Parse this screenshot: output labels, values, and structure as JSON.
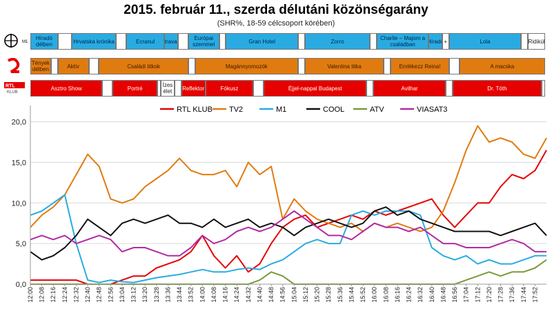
{
  "title": "2015. február 11., szerda délutáni közönségarány",
  "subtitle": "(SHR%, 18-59 célcsoport körében)",
  "schedule": {
    "m1": [
      {
        "label": "Híradó délben",
        "s": 0,
        "e": 8,
        "c": "m1"
      },
      {
        "label": "",
        "s": 8,
        "e": 12,
        "c": "blank"
      },
      {
        "label": "Hrvatska krónika",
        "s": 12,
        "e": 25,
        "c": "m1"
      },
      {
        "label": "",
        "s": 25,
        "e": 28,
        "c": "blank"
      },
      {
        "label": "Ecranul",
        "s": 28,
        "e": 39,
        "c": "m1"
      },
      {
        "label": "Útravaló",
        "s": 39,
        "e": 43,
        "c": "m1"
      },
      {
        "label": "",
        "s": 43,
        "e": 46,
        "c": "blank"
      },
      {
        "label": "Európai szemmel",
        "s": 46,
        "e": 55,
        "c": "m1"
      },
      {
        "label": "",
        "s": 55,
        "e": 57,
        "c": "blank"
      },
      {
        "label": "Gran Hotel",
        "s": 57,
        "e": 78,
        "c": "m1"
      },
      {
        "label": "",
        "s": 78,
        "e": 80,
        "c": "blank"
      },
      {
        "label": "Zorro",
        "s": 80,
        "e": 99,
        "c": "m1"
      },
      {
        "label": "",
        "s": 99,
        "e": 101,
        "c": "blank"
      },
      {
        "label": "Charlie – Majom a családban",
        "s": 101,
        "e": 116,
        "c": "m1"
      },
      {
        "label": "Híradó",
        "s": 116,
        "e": 120,
        "c": "m1"
      },
      {
        "label": "+",
        "s": 120,
        "e": 122,
        "c": "blank"
      },
      {
        "label": "Lola",
        "s": 122,
        "e": 143,
        "c": "m1"
      },
      {
        "label": "",
        "s": 143,
        "e": 145,
        "c": "blank"
      },
      {
        "label": "Ridikül",
        "s": 145,
        "e": 150,
        "c": "blank"
      }
    ],
    "tv2": [
      {
        "label": "Tények délben",
        "s": 0,
        "e": 6,
        "c": "tv2"
      },
      {
        "label": "",
        "s": 6,
        "e": 8,
        "c": "blank"
      },
      {
        "label": "Aktív",
        "s": 8,
        "e": 17,
        "c": "tv2"
      },
      {
        "label": "",
        "s": 17,
        "e": 20,
        "c": "blank"
      },
      {
        "label": "Családi titkok",
        "s": 20,
        "e": 46,
        "c": "tv2"
      },
      {
        "label": "",
        "s": 46,
        "e": 48,
        "c": "blank"
      },
      {
        "label": "Magánnyomozók",
        "s": 48,
        "e": 78,
        "c": "tv2"
      },
      {
        "label": "",
        "s": 78,
        "e": 80,
        "c": "blank"
      },
      {
        "label": "Valentina titka",
        "s": 80,
        "e": 103,
        "c": "tv2"
      },
      {
        "label": "",
        "s": 103,
        "e": 105,
        "c": "blank"
      },
      {
        "label": "Emlékezz Reina!",
        "s": 105,
        "e": 122,
        "c": "tv2"
      },
      {
        "label": "",
        "s": 122,
        "e": 125,
        "c": "blank"
      },
      {
        "label": "A macska",
        "s": 125,
        "e": 150,
        "c": "tv2"
      }
    ],
    "rtl": [
      {
        "label": "Asztro Show",
        "s": 0,
        "e": 21,
        "c": "rtl"
      },
      {
        "label": "",
        "s": 21,
        "e": 24,
        "c": "blank"
      },
      {
        "label": "Portré",
        "s": 24,
        "e": 37,
        "c": "rtl"
      },
      {
        "label": "",
        "s": 37,
        "e": 38,
        "c": "blank"
      },
      {
        "label": "Ízes élet",
        "s": 38,
        "e": 42,
        "c": "blank"
      },
      {
        "label": "",
        "s": 42,
        "e": 44,
        "c": "blank"
      },
      {
        "label": "Reflektor",
        "s": 44,
        "e": 51,
        "c": "rtl"
      },
      {
        "label": "Fókusz",
        "s": 51,
        "e": 65,
        "c": "rtl"
      },
      {
        "label": "",
        "s": 65,
        "e": 68,
        "c": "blank"
      },
      {
        "label": "Éjjel-nappal Budapest",
        "s": 68,
        "e": 98,
        "c": "rtl"
      },
      {
        "label": "",
        "s": 98,
        "e": 100,
        "c": "blank"
      },
      {
        "label": "Avilhar",
        "s": 100,
        "e": 121,
        "c": "rtl"
      },
      {
        "label": "",
        "s": 121,
        "e": 123,
        "c": "blank"
      },
      {
        "label": "Dr. Tóth",
        "s": 123,
        "e": 149,
        "c": "rtl"
      },
      {
        "label": "",
        "s": 149,
        "e": 150,
        "c": "blank"
      }
    ]
  },
  "chart_data": {
    "type": "line",
    "x": [
      "12:00",
      "12:08",
      "12:16",
      "12:24",
      "12:32",
      "12:40",
      "12:48",
      "12:56",
      "13:04",
      "13:12",
      "13:20",
      "13:28",
      "13:36",
      "13:44",
      "13:52",
      "14:00",
      "14:08",
      "14:16",
      "14:24",
      "14:32",
      "14:40",
      "14:48",
      "14:56",
      "15:04",
      "15:12",
      "15:20",
      "15:28",
      "15:36",
      "15:44",
      "15:52",
      "16:00",
      "16:08",
      "16:16",
      "16:24",
      "16:32",
      "16:40",
      "16:48",
      "16:56",
      "17:04",
      "17:12",
      "17:20",
      "17:28",
      "17:36",
      "17:44",
      "17:52",
      "17:56"
    ],
    "x_tick_labels": [
      "12:00",
      "12:08",
      "12:16",
      "12:24",
      "12:32",
      "12:40",
      "12:48",
      "12:56",
      "13:04",
      "13:12",
      "13:20",
      "13:28",
      "13:36",
      "13:44",
      "13:52",
      "14:00",
      "14:08",
      "14:16",
      "14:24",
      "14:32",
      "14:40",
      "14:48",
      "14:56",
      "15:04",
      "15:12",
      "15:20",
      "15:28",
      "15:36",
      "15:44",
      "15:52",
      "16:00",
      "16:08",
      "16:16",
      "16:24",
      "16:32",
      "16:40",
      "16:48",
      "16:56",
      "17:04",
      "17:12",
      "17:20",
      "17:28",
      "17:36",
      "17:44",
      "17:52"
    ],
    "ylim": [
      0,
      22
    ],
    "y_ticks": [
      "0,0",
      "5,0",
      "10,0",
      "15,0",
      "20,0"
    ],
    "y_tick_values": [
      0,
      5,
      10,
      15,
      20
    ],
    "series": [
      {
        "name": "RTL KLUB",
        "color": "#e60000",
        "values": [
          0.5,
          0.5,
          0.5,
          0.5,
          0.5,
          0.0,
          0.0,
          0.0,
          0.5,
          1.0,
          1.0,
          2.0,
          2.5,
          3.0,
          4.0,
          6.0,
          3.5,
          2.0,
          3.5,
          1.5,
          2.5,
          5.0,
          7.0,
          8.0,
          8.5,
          7.0,
          7.5,
          8.0,
          8.5,
          8.0,
          9.0,
          8.5,
          9.0,
          9.5,
          10.0,
          10.5,
          8.5,
          7.0,
          8.5,
          10.0,
          10.0,
          12.0,
          13.5,
          13.0,
          14.0,
          16.5
        ]
      },
      {
        "name": "TV2",
        "color": "#e07b10",
        "values": [
          7.0,
          8.5,
          9.5,
          11.0,
          13.5,
          16.0,
          14.5,
          10.5,
          10.0,
          10.5,
          12.0,
          13.0,
          14.0,
          15.5,
          14.0,
          13.5,
          13.5,
          14.0,
          12.0,
          15.0,
          13.5,
          14.5,
          8.0,
          10.5,
          9.0,
          8.0,
          7.5,
          7.0,
          7.5,
          6.5,
          7.5,
          7.0,
          7.5,
          7.0,
          6.5,
          7.0,
          9.0,
          12.5,
          16.5,
          19.5,
          17.5,
          18.0,
          17.5,
          16.0,
          15.5,
          18.0
        ]
      },
      {
        "name": "M1",
        "color": "#29abe2",
        "values": [
          8.5,
          9.0,
          10.0,
          11.0,
          5.0,
          0.5,
          0.2,
          0.5,
          0.3,
          0.2,
          0.5,
          0.8,
          1.0,
          1.2,
          1.5,
          1.8,
          1.5,
          1.5,
          1.8,
          2.0,
          1.8,
          2.5,
          3.0,
          4.0,
          5.0,
          5.5,
          5.0,
          5.0,
          8.5,
          9.0,
          8.5,
          9.0,
          9.0,
          9.0,
          8.5,
          4.5,
          3.5,
          3.0,
          3.5,
          2.5,
          3.0,
          2.5,
          2.5,
          3.0,
          3.5,
          3.5
        ]
      },
      {
        "name": "COOL",
        "color": "#111111",
        "values": [
          4.0,
          3.0,
          3.5,
          4.5,
          6.0,
          8.0,
          7.0,
          6.0,
          7.5,
          8.0,
          7.5,
          8.0,
          8.5,
          7.5,
          7.5,
          7.0,
          8.0,
          7.0,
          7.5,
          8.0,
          7.0,
          7.5,
          7.0,
          6.0,
          7.0,
          7.5,
          8.0,
          7.5,
          7.0,
          7.5,
          9.0,
          9.5,
          8.5,
          9.0,
          8.0,
          7.5,
          7.0,
          6.5,
          6.5,
          6.5,
          6.5,
          6.0,
          6.5,
          7.0,
          7.5,
          6.0
        ]
      },
      {
        "name": "ATV",
        "color": "#7a9a3a",
        "values": [
          0.0,
          0.0,
          0.0,
          0.0,
          0.0,
          0.0,
          0.0,
          0.0,
          0.0,
          0.0,
          0.0,
          0.0,
          0.0,
          0.0,
          0.0,
          0.0,
          0.0,
          0.0,
          0.0,
          0.0,
          0.5,
          1.5,
          1.0,
          0.0,
          0.0,
          0.0,
          0.0,
          0.0,
          0.0,
          0.0,
          0.0,
          0.0,
          0.0,
          0.0,
          0.0,
          0.0,
          0.0,
          0.0,
          0.5,
          1.0,
          1.5,
          1.0,
          1.5,
          1.5,
          2.0,
          3.0
        ]
      },
      {
        "name": "VIASAT3",
        "color": "#b22aa5",
        "values": [
          5.5,
          6.0,
          5.5,
          6.0,
          5.0,
          5.5,
          6.0,
          5.5,
          4.0,
          4.5,
          4.5,
          4.0,
          3.5,
          3.5,
          4.5,
          6.0,
          5.0,
          5.5,
          6.5,
          7.0,
          6.5,
          7.0,
          8.0,
          9.0,
          8.0,
          7.0,
          6.0,
          6.0,
          5.5,
          6.5,
          7.5,
          7.0,
          7.0,
          6.5,
          7.0,
          6.0,
          5.0,
          5.0,
          4.5,
          4.5,
          4.5,
          5.0,
          5.5,
          5.0,
          4.0,
          4.0
        ]
      }
    ]
  }
}
